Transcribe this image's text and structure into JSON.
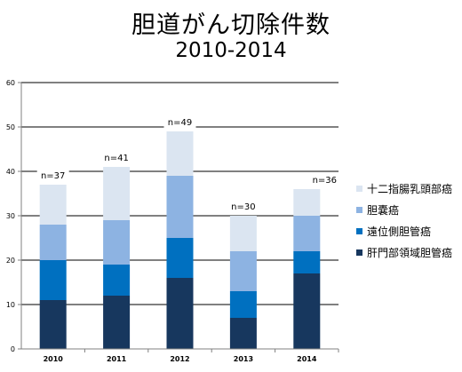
{
  "chart_data": {
    "type": "bar",
    "stacked": true,
    "title": "胆道がん切除件数",
    "subtitle": "2010-2014",
    "categories": [
      "2010",
      "2011",
      "2012",
      "2013",
      "2014"
    ],
    "series": [
      {
        "name": "肝門部領域胆管癌",
        "color": "#17375e",
        "values": [
          11,
          12,
          16,
          7,
          17
        ]
      },
      {
        "name": "遠位側胆管癌",
        "color": "#0070c0",
        "values": [
          9,
          7,
          9,
          6,
          5
        ]
      },
      {
        "name": "胆嚢癌",
        "color": "#8db3e2",
        "values": [
          8,
          10,
          14,
          9,
          8
        ]
      },
      {
        "name": "十二指腸乳頭部癌",
        "color": "#dbe5f1",
        "values": [
          9,
          12,
          10,
          8,
          6
        ]
      }
    ],
    "totals": [
      "n=37",
      "n=41",
      "n=49",
      "n=30",
      "n=36"
    ],
    "yticks": [
      "0",
      "10",
      "20",
      "30",
      "40",
      "50",
      "60"
    ],
    "ylim": [
      0,
      60
    ],
    "grid": true,
    "legend_position": "right"
  }
}
